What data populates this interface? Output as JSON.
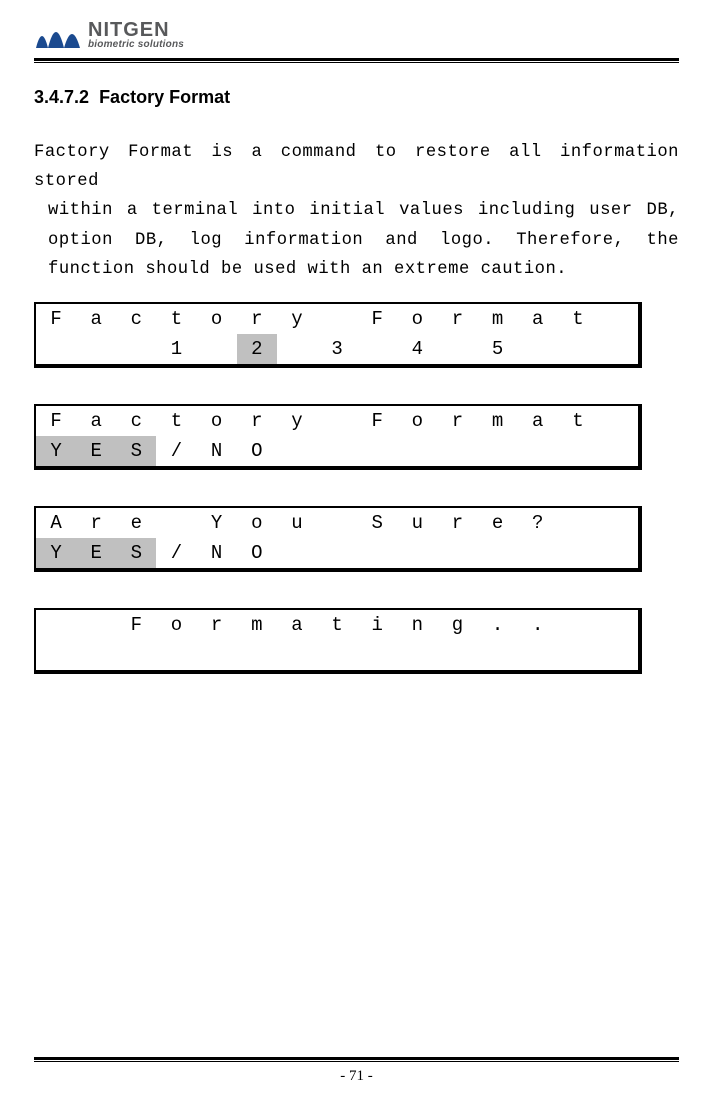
{
  "logo": {
    "main": "NITGEN",
    "sub": "biometric solutions",
    "bar_colors": [
      "#1b4a8f",
      "#1b4a8f",
      "#1b4a8f"
    ]
  },
  "section": {
    "number": "3.4.7.2",
    "title": "Factory Format"
  },
  "paragraph": {
    "line1": "Factory Format is a command to restore all information stored",
    "rest": "within a terminal into initial values including user DB, option DB, log information and logo. Therefore, the function should be used with an extreme caution."
  },
  "lcd_highlight_bg": "#c0c0c0",
  "screens": [
    {
      "rows": [
        {
          "cells": [
            "F",
            "a",
            "c",
            "t",
            "o",
            "r",
            "y",
            "",
            "F",
            "o",
            "r",
            "m",
            "a",
            "t",
            ""
          ],
          "hl": []
        },
        {
          "cells": [
            "",
            "",
            "",
            "1",
            "",
            "2",
            "",
            "3",
            "",
            "4",
            "",
            "5",
            "",
            "",
            ""
          ],
          "hl": [
            5
          ]
        }
      ]
    },
    {
      "rows": [
        {
          "cells": [
            "F",
            "a",
            "c",
            "t",
            "o",
            "r",
            "y",
            "",
            "F",
            "o",
            "r",
            "m",
            "a",
            "t",
            ""
          ],
          "hl": []
        },
        {
          "cells": [
            "Y",
            "E",
            "S",
            "/",
            "N",
            "O",
            "",
            "",
            "",
            "",
            "",
            "",
            "",
            "",
            ""
          ],
          "hl": [
            0,
            1,
            2
          ]
        }
      ]
    },
    {
      "rows": [
        {
          "cells": [
            "A",
            "r",
            "e",
            "",
            "Y",
            "o",
            "u",
            "",
            "S",
            "u",
            "r",
            "e",
            "?",
            "",
            ""
          ],
          "hl": []
        },
        {
          "cells": [
            "Y",
            "E",
            "S",
            "/",
            "N",
            "O",
            "",
            "",
            "",
            "",
            "",
            "",
            "",
            "",
            ""
          ],
          "hl": [
            0,
            1,
            2
          ]
        }
      ]
    },
    {
      "rows": [
        {
          "cells": [
            "",
            "",
            "F",
            "o",
            "r",
            "m",
            "a",
            "t",
            "i",
            "n",
            "g",
            ".",
            ".",
            "",
            ""
          ],
          "hl": []
        },
        {
          "cells": [
            "",
            "",
            "",
            "",
            "",
            "",
            "",
            "",
            "",
            "",
            "",
            "",
            "",
            "",
            ""
          ],
          "hl": []
        }
      ]
    }
  ],
  "page_number": "- 71 -"
}
